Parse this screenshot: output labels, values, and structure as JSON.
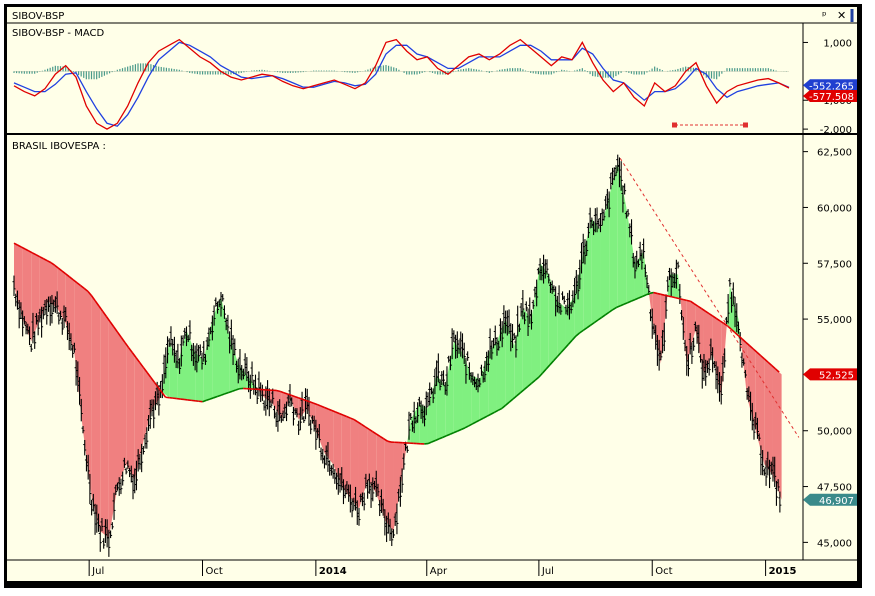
{
  "window": {
    "title": "SIBOV-BSP",
    "pin_icon": "pin-icon",
    "close_icon": "close-icon"
  },
  "colors": {
    "background": "#FFFFE8",
    "price_bar": "#000000",
    "ma_line": "#E00000",
    "ma_line_rising": "#008000",
    "fill_above": "#80F080",
    "fill_below": "#F08080",
    "macd_line": "#E00000",
    "signal_line": "#2040E0",
    "histogram": "#4A9A8A",
    "trendline": "#E03030",
    "tag_signal": "#2040D0",
    "tag_macd": "#E00000",
    "tag_ma": "#E00000",
    "tag_last": "#3A8A8A"
  },
  "chart_data": [
    {
      "type": "line",
      "title": "SIBOV-BSP - MACD",
      "y_ticks": [
        "1,000",
        "-1,000",
        "-2,000"
      ],
      "ylim": [
        -2100,
        1500
      ],
      "last_values": {
        "signal": "-552.265",
        "macd": "-577.508"
      },
      "series": [
        {
          "role": "macd",
          "values": [
            -500,
            -700,
            -850,
            -600,
            -100,
            200,
            -200,
            -1200,
            -1800,
            -2000,
            -1800,
            -1200,
            -400,
            300,
            700,
            900,
            1100,
            800,
            500,
            300,
            0,
            -200,
            -300,
            -200,
            -100,
            -150,
            -350,
            -500,
            -600,
            -500,
            -400,
            -300,
            -450,
            -600,
            -400,
            200,
            1000,
            1100,
            700,
            400,
            500,
            100,
            -100,
            200,
            500,
            600,
            400,
            600,
            900,
            1100,
            800,
            500,
            200,
            500,
            400,
            1000,
            300,
            -300,
            -700,
            -400,
            -900,
            -1200,
            -400,
            -700,
            -500,
            0,
            300,
            -500,
            -1100,
            -700,
            -500,
            -400,
            -300,
            -250,
            -400,
            -577
          ],
          "note": ""
        },
        {
          "role": "signal",
          "values": [
            -400,
            -550,
            -700,
            -700,
            -450,
            -100,
            -50,
            -700,
            -1300,
            -1800,
            -1900,
            -1500,
            -900,
            -200,
            400,
            700,
            1000,
            900,
            700,
            500,
            200,
            0,
            -200,
            -250,
            -200,
            -150,
            -250,
            -400,
            -550,
            -550,
            -450,
            -350,
            -400,
            -500,
            -450,
            -100,
            600,
            900,
            900,
            600,
            500,
            300,
            100,
            100,
            300,
            500,
            500,
            500,
            700,
            900,
            900,
            700,
            400,
            400,
            400,
            800,
            600,
            100,
            -300,
            -400,
            -700,
            -1000,
            -700,
            -700,
            -600,
            -300,
            100,
            -100,
            -600,
            -900,
            -700,
            -600,
            -500,
            -450,
            -400,
            -552
          ],
          "note": ""
        },
        {
          "role": "histogram",
          "values": [
            -100,
            -150,
            -150,
            100,
            350,
            300,
            -150,
            -500,
            -500,
            -200,
            100,
            300,
            500,
            500,
            300,
            200,
            100,
            -100,
            -200,
            -200,
            -200,
            -200,
            -100,
            50,
            100,
            0,
            -100,
            -100,
            -50,
            50,
            50,
            50,
            -50,
            -100,
            50,
            300,
            400,
            200,
            -200,
            -200,
            0,
            -200,
            -200,
            100,
            200,
            100,
            -100,
            100,
            200,
            200,
            -100,
            -200,
            -200,
            100,
            0,
            200,
            -300,
            -400,
            -400,
            0,
            -200,
            -200,
            300,
            0,
            100,
            300,
            200,
            -400,
            -500,
            200,
            200,
            200,
            200,
            200,
            0,
            -25
          ],
          "note": ""
        }
      ],
      "divergence_markers": "two red square markers joined by a dashed red line below the MACD lows in Oct-Dec"
    },
    {
      "type": "line",
      "title": "BRASIL IBOVESPA :",
      "y_ticks": [
        "62,500",
        "60,000",
        "57,500",
        "55,000",
        "52,525",
        "50,000",
        "47,500",
        "46,907",
        "45,000"
      ],
      "ylim": [
        44300,
        63200
      ],
      "x_ticks": [
        "Jul",
        "Oct",
        "2014",
        "Apr",
        "Jul",
        "Oct",
        "2015"
      ],
      "last_values": {
        "moving_average": "52,525",
        "close": "46,907"
      },
      "series": [
        {
          "name": "",
          "role": "close",
          "x": [
            "2013-05-01",
            "2013-05-08",
            "2013-05-15",
            "2013-05-22",
            "2013-05-29",
            "2013-06-05",
            "2013-06-12",
            "2013-06-19",
            "2013-06-26",
            "2013-07-03",
            "2013-07-10",
            "2013-07-17",
            "2013-07-24",
            "2013-07-31",
            "2013-08-07",
            "2013-08-14",
            "2013-08-21",
            "2013-08-28",
            "2013-09-04",
            "2013-09-11",
            "2013-09-18",
            "2013-09-25",
            "2013-10-02",
            "2013-10-09",
            "2013-10-16",
            "2013-10-23",
            "2013-10-30",
            "2013-11-06",
            "2013-11-13",
            "2013-11-20",
            "2013-11-27",
            "2013-12-04",
            "2013-12-11",
            "2013-12-18",
            "2013-12-25",
            "2014-01-01",
            "2014-01-08",
            "2014-01-15",
            "2014-01-22",
            "2014-01-29",
            "2014-02-05",
            "2014-02-12",
            "2014-02-19",
            "2014-02-26",
            "2014-03-05",
            "2014-03-12",
            "2014-03-19",
            "2014-03-26",
            "2014-04-02",
            "2014-04-09",
            "2014-04-16",
            "2014-04-23",
            "2014-04-30",
            "2014-05-07",
            "2014-05-14",
            "2014-05-21",
            "2014-05-28",
            "2014-06-04",
            "2014-06-11",
            "2014-06-18",
            "2014-06-25",
            "2014-07-02",
            "2014-07-09",
            "2014-07-16",
            "2014-07-23",
            "2014-07-30",
            "2014-08-06",
            "2014-08-13",
            "2014-08-20",
            "2014-08-27",
            "2014-09-03",
            "2014-09-10",
            "2014-09-17",
            "2014-09-24",
            "2014-10-01",
            "2014-10-08",
            "2014-10-15",
            "2014-10-22",
            "2014-10-29",
            "2014-11-05",
            "2014-11-12",
            "2014-11-19",
            "2014-11-26",
            "2014-12-03",
            "2014-12-10",
            "2014-12-17",
            "2014-12-24",
            "2014-12-31",
            "2015-01-07",
            "2015-01-14"
          ],
          "values": [
            56500,
            55000,
            54000,
            55000,
            55800,
            55500,
            54800,
            53500,
            50000,
            47000,
            45500,
            45200,
            47500,
            48500,
            47800,
            49500,
            51000,
            51500,
            54000,
            53000,
            54500,
            53500,
            53200,
            55000,
            56000,
            54200,
            53000,
            52500,
            52000,
            51500,
            51200,
            50500,
            51500,
            50500,
            51000,
            50000,
            49000,
            48500,
            47500,
            47000,
            46500,
            47800,
            47200,
            46000,
            45500,
            48000,
            50500,
            51200,
            51000,
            52500,
            52000,
            54000,
            53500,
            52500,
            52300,
            53500,
            54000,
            55000,
            53800,
            55500,
            55000,
            57500,
            57000,
            55800,
            55500,
            56000,
            58000,
            59500,
            59000,
            60500,
            62000,
            60000,
            57500,
            58000,
            55000,
            53000,
            57000,
            57000,
            53000,
            54500,
            52500,
            53500,
            51500,
            56500,
            55000,
            51500,
            50000,
            48500,
            48000,
            46907
          ]
        },
        {
          "name": "",
          "role": "moving_average",
          "x": [
            "2013-05-01",
            "2013-06-01",
            "2013-07-01",
            "2013-08-01",
            "2013-09-01",
            "2013-10-01",
            "2013-11-01",
            "2013-12-01",
            "2014-01-01",
            "2014-02-01",
            "2014-03-01",
            "2014-04-01",
            "2014-05-01",
            "2014-06-01",
            "2014-07-01",
            "2014-08-01",
            "2014-09-01",
            "2014-10-01",
            "2014-11-01",
            "2014-12-01",
            "2015-01-14"
          ],
          "values": [
            58400,
            57500,
            56200,
            53800,
            51500,
            51300,
            51900,
            51800,
            51200,
            50500,
            49500,
            49400,
            50100,
            51000,
            52400,
            54300,
            55500,
            56200,
            55800,
            54700,
            52525
          ]
        }
      ],
      "trendline": {
        "from": [
          "2014-09-05",
          62200
        ],
        "to": [
          "2015-01-28",
          49700
        ]
      }
    }
  ]
}
